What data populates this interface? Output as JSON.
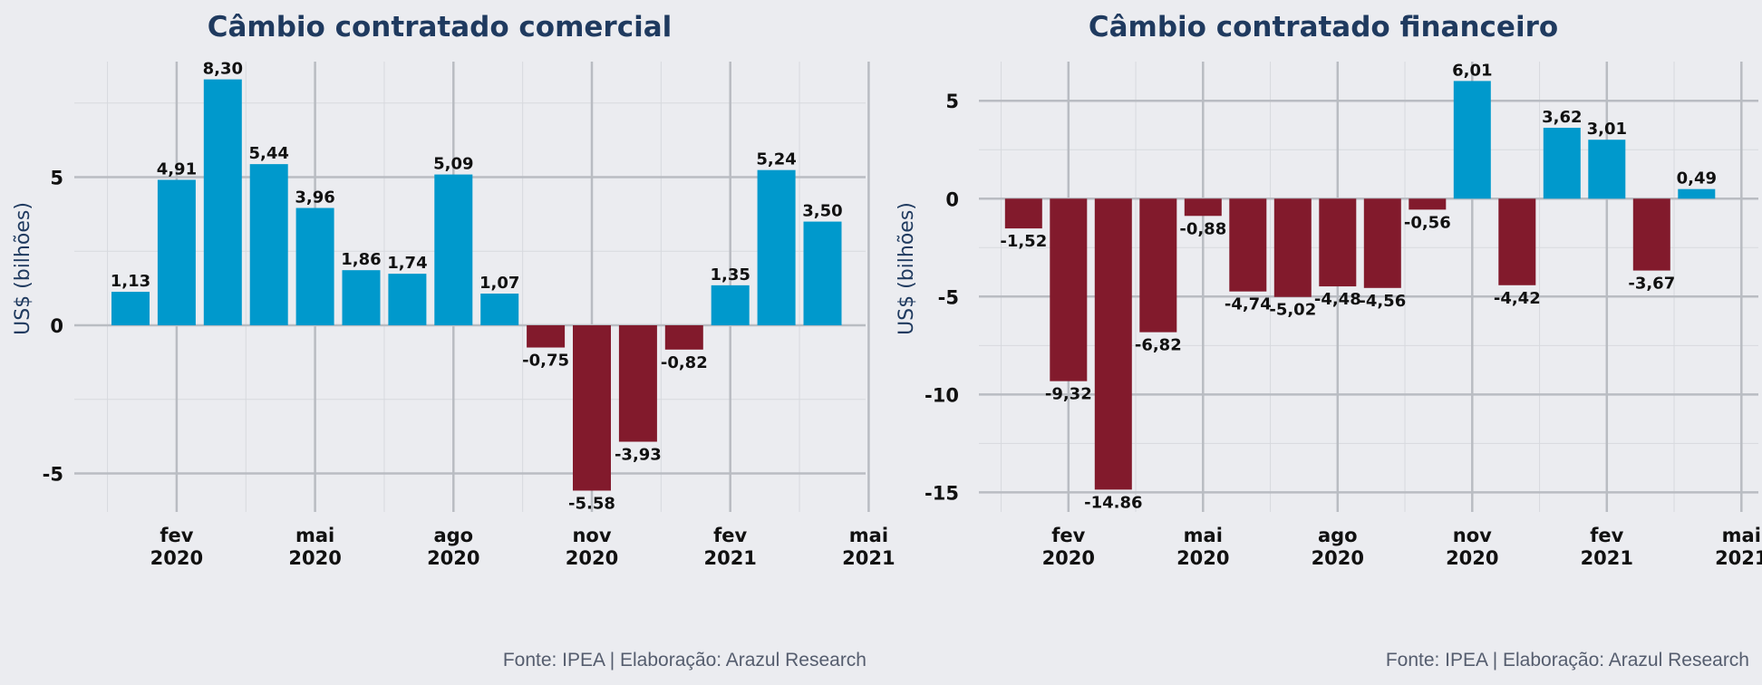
{
  "colors": {
    "positive": "#0099cc",
    "negative": "#821a2c",
    "background": "#ebecf0",
    "grid_major": "#b9bcc2",
    "grid_minor": "#d7d9de",
    "title": "#1f3a5f"
  },
  "source_note": "Fonte: IPEA | Elaboração: Arazul Research",
  "chart_data": [
    {
      "type": "bar",
      "title": "Câmbio contratado comercial",
      "ylabel": "US$ (bilhões)",
      "xlabel": "",
      "x": [
        "2020-01",
        "2020-02",
        "2020-03",
        "2020-04",
        "2020-05",
        "2020-06",
        "2020-07",
        "2020-08",
        "2020-09",
        "2020-10",
        "2020-11",
        "2020-12",
        "2021-01",
        "2021-02",
        "2021-03",
        "2021-04"
      ],
      "values": [
        1.13,
        4.91,
        8.3,
        5.44,
        3.96,
        1.86,
        1.74,
        5.09,
        1.07,
        -0.75,
        -5.58,
        -3.93,
        -0.82,
        1.35,
        5.24,
        3.5
      ],
      "value_labels": [
        "1,13",
        "4,91",
        "8,30",
        "5,44",
        "3,96",
        "1,86",
        "1,74",
        "5,09",
        "1,07",
        "-0,75",
        "-5.58",
        "-3,93",
        "-0,82",
        "1,35",
        "5,24",
        "3,50"
      ],
      "ylim": [
        -6.3,
        8.9
      ],
      "yticks": [
        -5,
        0,
        5
      ],
      "ytick_labels": [
        "-5",
        "0",
        "5"
      ],
      "xticks": [
        {
          "month": "2020-02",
          "label": [
            "fev",
            "2020"
          ]
        },
        {
          "month": "2020-05",
          "label": [
            "mai",
            "2020"
          ]
        },
        {
          "month": "2020-08",
          "label": [
            "ago",
            "2020"
          ]
        },
        {
          "month": "2020-11",
          "label": [
            "nov",
            "2020"
          ]
        },
        {
          "month": "2021-02",
          "label": [
            "fev",
            "2021"
          ]
        },
        {
          "month": "2021-05",
          "label": [
            "mai",
            "2021"
          ]
        }
      ],
      "grid": true
    },
    {
      "type": "bar",
      "title": "Câmbio contratado financeiro",
      "ylabel": "US$ (bilhões)",
      "xlabel": "",
      "x": [
        "2020-01",
        "2020-02",
        "2020-03",
        "2020-04",
        "2020-05",
        "2020-06",
        "2020-07",
        "2020-08",
        "2020-09",
        "2020-10",
        "2020-11",
        "2020-12",
        "2021-01",
        "2021-02",
        "2021-03",
        "2021-04"
      ],
      "values": [
        -1.52,
        -9.32,
        -14.86,
        -6.82,
        -0.88,
        -4.74,
        -5.02,
        -4.48,
        -4.56,
        -0.56,
        6.01,
        -4.42,
        3.62,
        3.01,
        -3.67,
        0.49
      ],
      "value_labels": [
        "-1,52",
        "-9,32",
        "-14.86",
        "-6,82",
        "-0,88",
        "-4,74",
        "-5,02",
        "-4,48",
        "-4,56",
        "-0,56",
        "6,01",
        "-4,42",
        "3,62",
        "3,01",
        "-3,67",
        "0,49"
      ],
      "ylim": [
        -16.0,
        7.0
      ],
      "yticks": [
        -15,
        -10,
        -5,
        0,
        5
      ],
      "ytick_labels": [
        "-15",
        "-10",
        "-5",
        "0",
        "5"
      ],
      "xticks": [
        {
          "month": "2020-02",
          "label": [
            "fev",
            "2020"
          ]
        },
        {
          "month": "2020-05",
          "label": [
            "mai",
            "2020"
          ]
        },
        {
          "month": "2020-08",
          "label": [
            "ago",
            "2020"
          ]
        },
        {
          "month": "2020-11",
          "label": [
            "nov",
            "2020"
          ]
        },
        {
          "month": "2021-02",
          "label": [
            "fev",
            "2021"
          ]
        },
        {
          "month": "2021-05",
          "label": [
            "mai",
            "2021"
          ]
        }
      ],
      "grid": true
    }
  ]
}
